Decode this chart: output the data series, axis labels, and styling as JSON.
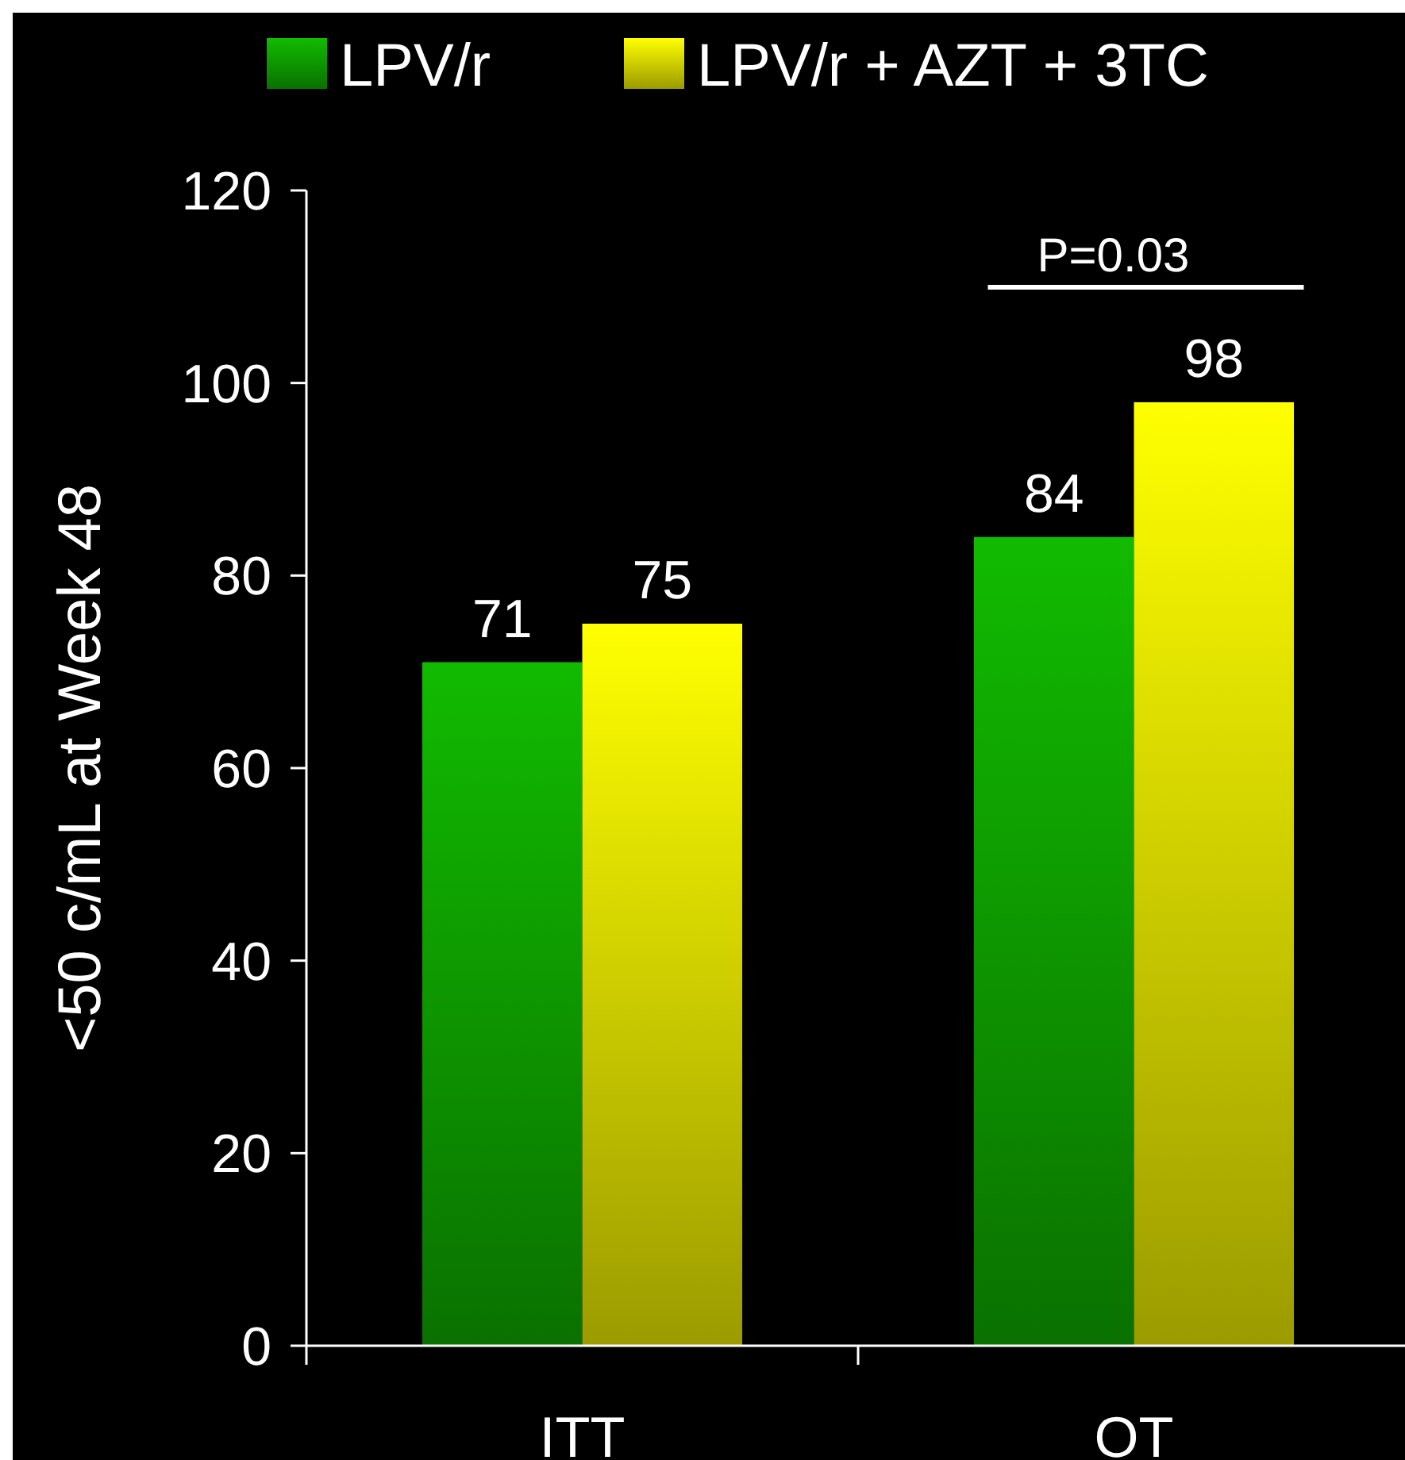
{
  "chart_data": {
    "type": "bar",
    "ylabel": "<50 c/mL at Week 48",
    "categories": [
      "ITT",
      "OT"
    ],
    "series": [
      {
        "name": "LPV/r",
        "color": "#11bb00",
        "values": [
          71,
          84
        ]
      },
      {
        "name": "LPV/r + AZT + 3TC",
        "color": "#ffff00",
        "values": [
          75,
          98
        ]
      }
    ],
    "ylim": [
      0,
      120
    ],
    "yticks": [
      0,
      20,
      40,
      60,
      80,
      100,
      120
    ],
    "data_labels": true,
    "legend": "top",
    "grid": false,
    "annotations": [
      "P=0.03"
    ]
  }
}
